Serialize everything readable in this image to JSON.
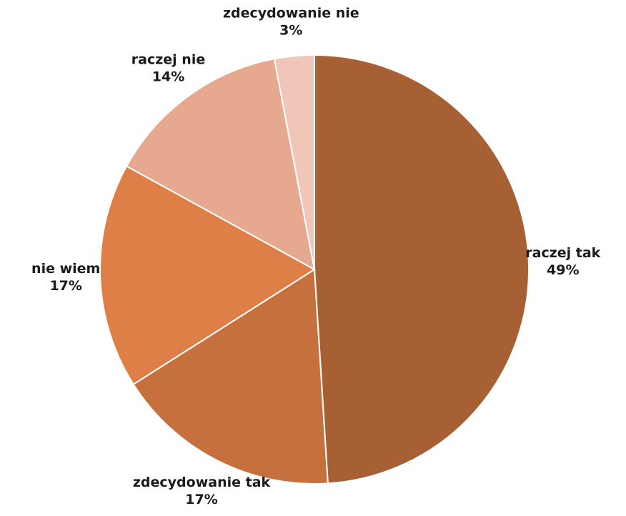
{
  "chart_data": {
    "type": "pie",
    "slices": [
      {
        "label": "raczej tak",
        "value": 49,
        "value_label": "49%",
        "color": "#A66033"
      },
      {
        "label": "zdecydowanie tak",
        "value": 17,
        "value_label": "17%",
        "color": "#C5703D"
      },
      {
        "label": "nie wiem",
        "value": 17,
        "value_label": "17%",
        "color": "#DE7F47"
      },
      {
        "label": "raczej nie",
        "value": 14,
        "value_label": "14%",
        "color": "#E6A88E"
      },
      {
        "label": "zdecydowanie nie",
        "value": 3,
        "value_label": "3%",
        "color": "#EFC6B8"
      }
    ],
    "start": "12 o'clock",
    "direction": "clockwise",
    "legend": "none",
    "data_labels": "outside"
  }
}
